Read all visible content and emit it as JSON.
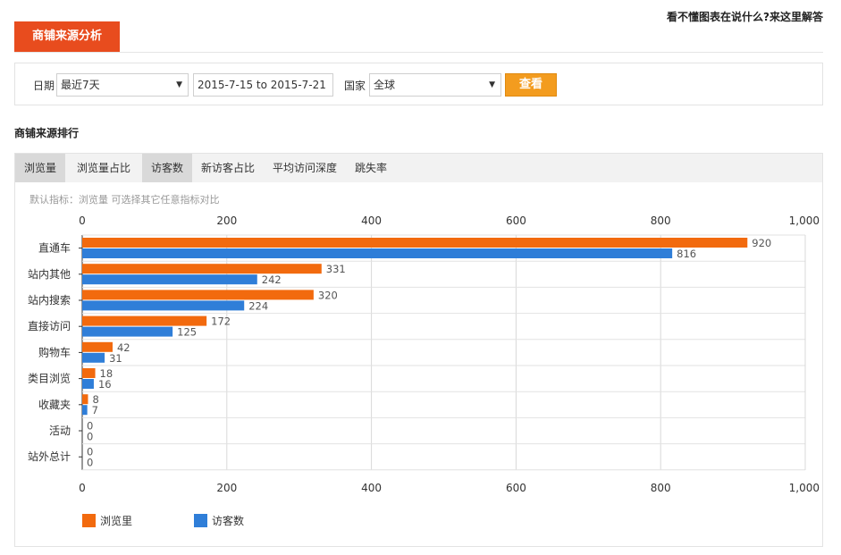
{
  "header": {
    "help_link": "看不懂图表在说什么?来这里解答",
    "title_tab": "商铺来源分析"
  },
  "filters": {
    "date_label": "日期",
    "date_range_select": "最近7天",
    "date_range_value": "2015-7-15 to 2015-7-21",
    "country_label": "国家",
    "country_select": "全球",
    "view_button": "查看"
  },
  "section": {
    "title": "商铺来源排行",
    "tabs": [
      {
        "label": "浏览量",
        "active": true
      },
      {
        "label": "浏览量占比",
        "active": false
      },
      {
        "label": "访客数",
        "active": true
      },
      {
        "label": "新访客占比",
        "active": false
      },
      {
        "label": "平均访问深度",
        "active": false
      },
      {
        "label": "跳失率",
        "active": false
      }
    ],
    "hint": "默认指标：浏览量 可选择其它任意指标对比"
  },
  "chart_data": {
    "type": "bar",
    "orientation": "horizontal",
    "categories": [
      "直通车",
      "站内其他",
      "站内搜索",
      "直接访问",
      "购物车",
      "类目浏览",
      "收藏夹",
      "活动",
      "站外总计"
    ],
    "series": [
      {
        "name": "浏览里",
        "color": "#f26a0e",
        "values": [
          920,
          331,
          320,
          172,
          42,
          18,
          8,
          0,
          0
        ]
      },
      {
        "name": "访客数",
        "color": "#2f7ed8",
        "values": [
          816,
          242,
          224,
          125,
          31,
          16,
          7,
          0,
          0
        ]
      }
    ],
    "x_ticks": [
      "0",
      "200",
      "400",
      "600",
      "800",
      "1,000"
    ],
    "xlim": [
      0,
      1000
    ],
    "grid": true,
    "legend_position": "bottom-left"
  }
}
